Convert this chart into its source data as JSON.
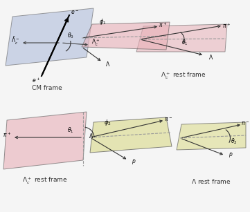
{
  "figure_width": 3.61,
  "figure_height": 3.07,
  "dpi": 100,
  "bg_color": "#f5f5f5",
  "blue_plane_color": "#aab8d8",
  "pink_plane_color": "#e8b0b8",
  "yellow_plane_color": "#dede98",
  "dark_color": "#333333",
  "dashed_color": "#999999",
  "arrow_color": "#444444"
}
